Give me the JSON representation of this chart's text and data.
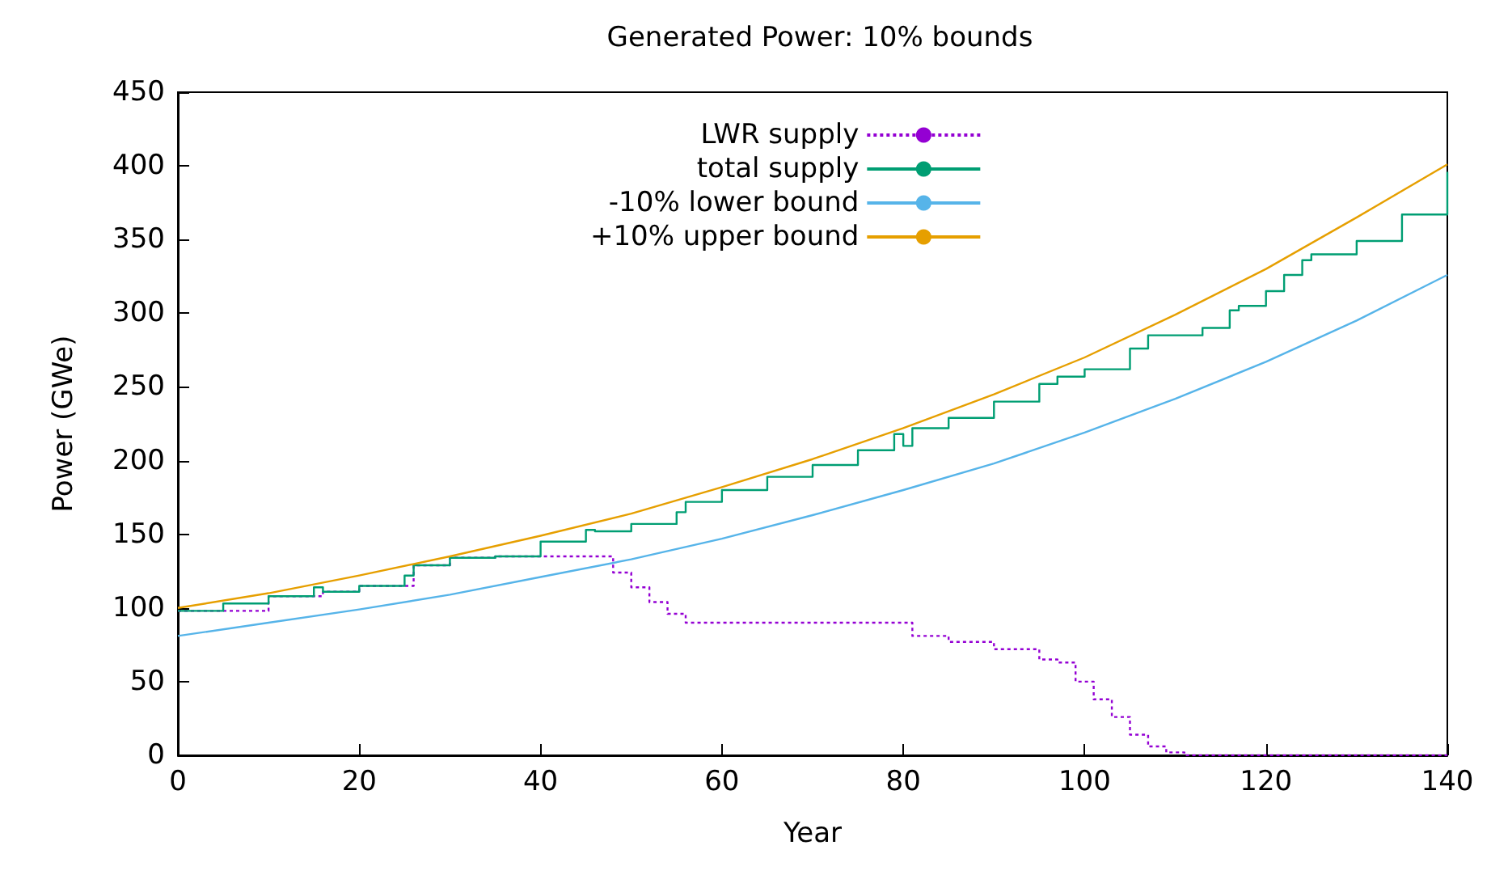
{
  "chart_data": {
    "type": "line",
    "title": "Generated Power: 10% bounds",
    "xlabel": "Year",
    "ylabel": "Power (GWe)",
    "xlim": [
      0,
      140
    ],
    "xticks": [
      0,
      20,
      40,
      60,
      80,
      100,
      120,
      140
    ],
    "ylim": [
      0,
      450
    ],
    "yticks": [
      0,
      50,
      100,
      150,
      200,
      250,
      300,
      350,
      400,
      450
    ],
    "grid": false,
    "legend": "top",
    "marker": "none",
    "series": [
      {
        "name": "LWR supply",
        "type": "step",
        "color": "#9400d3",
        "line_style": "dotted",
        "x": [
          0,
          10,
          16,
          20,
          26,
          30,
          35,
          46,
          48,
          50,
          52,
          54,
          56,
          80,
          81,
          85,
          90,
          95,
          97,
          99,
          101,
          103,
          105,
          107,
          109,
          111,
          140
        ],
        "values": [
          98,
          108,
          111,
          115,
          129,
          134,
          135,
          135,
          124,
          114,
          104,
          96,
          90,
          90,
          81,
          77,
          72,
          65,
          63,
          50,
          38,
          26,
          14,
          6,
          2,
          0,
          0
        ]
      },
      {
        "name": "total supply",
        "type": "step",
        "color": "#009e73",
        "line_style": "solid",
        "x": [
          0,
          5,
          10,
          15,
          16,
          20,
          25,
          26,
          30,
          35,
          40,
          45,
          46,
          50,
          55,
          56,
          60,
          65,
          70,
          75,
          79,
          80,
          81,
          85,
          90,
          95,
          97,
          100,
          105,
          107,
          110,
          113,
          116,
          117,
          120,
          122,
          124,
          125,
          130,
          135,
          140
        ],
        "values": [
          98,
          103,
          108,
          114,
          111,
          115,
          122,
          129,
          134,
          135,
          145,
          153,
          152,
          157,
          165,
          172,
          180,
          189,
          197,
          207,
          218,
          210,
          222,
          229,
          240,
          252,
          257,
          262,
          276,
          285,
          285,
          290,
          302,
          305,
          315,
          326,
          336,
          340,
          349,
          367,
          396
        ]
      },
      {
        "name": "-10% lower bound",
        "color": "#56b4e9",
        "line_style": "solid",
        "x": [
          0,
          10,
          20,
          30,
          40,
          50,
          60,
          70,
          80,
          90,
          100,
          110,
          120,
          130,
          140
        ],
        "values": [
          81,
          90,
          99,
          109,
          121,
          133,
          147,
          163,
          180,
          198,
          219,
          242,
          267,
          295,
          326
        ]
      },
      {
        "name": "+10% upper bound",
        "color": "#e69f00",
        "line_style": "solid",
        "x": [
          0,
          10,
          20,
          30,
          40,
          50,
          60,
          70,
          80,
          90,
          100,
          110,
          120,
          130,
          140
        ],
        "values": [
          100,
          110,
          122,
          135,
          149,
          164,
          182,
          201,
          222,
          245,
          270,
          299,
          330,
          365,
          401
        ]
      }
    ]
  }
}
